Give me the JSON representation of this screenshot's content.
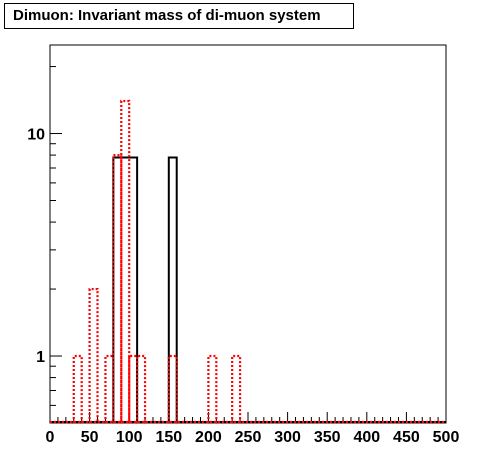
{
  "chart_data": {
    "type": "histogram",
    "title": "Dimuon: Invariant mass of di-muon system",
    "xlim": [
      0,
      500
    ],
    "ylim": [
      0.5,
      25
    ],
    "yscale": "log",
    "bin_width": 10,
    "x_ticks": [
      "0",
      "50",
      "100",
      "150",
      "200",
      "250",
      "300",
      "350",
      "400",
      "450",
      "500"
    ],
    "y_ticks": [
      {
        "value": 1,
        "label": "1"
      },
      {
        "value": 10,
        "label": "10"
      }
    ],
    "series": [
      {
        "style": "solid",
        "color": "#000000",
        "bins": [
          {
            "x0": 80,
            "x1": 110,
            "y": 7.8
          },
          {
            "x0": 150,
            "x1": 160,
            "y": 7.8
          }
        ]
      },
      {
        "style": "dotted",
        "color": "#ff0000",
        "bins": [
          {
            "x0": 30,
            "x1": 40,
            "y": 1
          },
          {
            "x0": 50,
            "x1": 60,
            "y": 2
          },
          {
            "x0": 70,
            "x1": 80,
            "y": 1
          },
          {
            "x0": 80,
            "x1": 90,
            "y": 8
          },
          {
            "x0": 90,
            "x1": 100,
            "y": 14
          },
          {
            "x0": 100,
            "x1": 110,
            "y": 1
          },
          {
            "x0": 110,
            "x1": 120,
            "y": 1
          },
          {
            "x0": 150,
            "x1": 160,
            "y": 1
          },
          {
            "x0": 200,
            "x1": 210,
            "y": 1
          },
          {
            "x0": 230,
            "x1": 240,
            "y": 1
          }
        ]
      }
    ]
  }
}
